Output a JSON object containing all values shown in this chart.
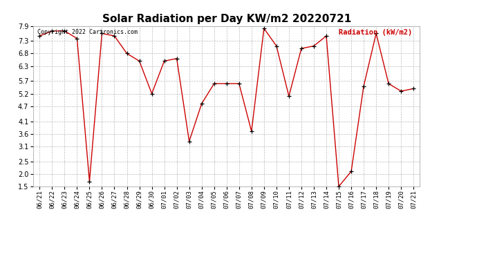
{
  "title": "Solar Radiation per Day KW/m2 20220721",
  "copyright_text": "Copyright 2022 Cartronics.com",
  "legend_label": "Radiation (kW/m2)",
  "dates": [
    "06/21",
    "06/22",
    "06/23",
    "06/24",
    "06/25",
    "06/26",
    "06/27",
    "06/28",
    "06/29",
    "06/30",
    "07/01",
    "07/02",
    "07/03",
    "07/04",
    "07/05",
    "07/06",
    "07/07",
    "07/08",
    "07/09",
    "07/10",
    "07/11",
    "07/12",
    "07/13",
    "07/14",
    "07/15",
    "07/16",
    "07/17",
    "07/18",
    "07/19",
    "07/20",
    "07/21"
  ],
  "values": [
    7.5,
    7.7,
    7.7,
    7.4,
    1.7,
    7.6,
    7.5,
    6.8,
    6.5,
    5.2,
    6.5,
    6.6,
    3.3,
    4.8,
    5.6,
    5.6,
    5.6,
    3.7,
    7.8,
    7.1,
    5.1,
    7.0,
    7.1,
    7.5,
    1.5,
    2.1,
    5.5,
    7.6,
    5.6,
    5.3,
    5.4
  ],
  "ylim": [
    1.5,
    7.9
  ],
  "yticks": [
    1.5,
    2.0,
    2.5,
    3.1,
    3.6,
    4.1,
    4.7,
    5.2,
    5.7,
    6.3,
    6.8,
    7.3,
    7.9
  ],
  "line_color": "#cc0000",
  "marker_color": "#000000",
  "background_color": "#ffffff",
  "grid_color": "#bbbbbb",
  "title_fontsize": 11,
  "legend_color": "#cc0000",
  "copyright_color": "#000000",
  "tick_fontsize": 6.5,
  "ytick_fontsize": 7
}
